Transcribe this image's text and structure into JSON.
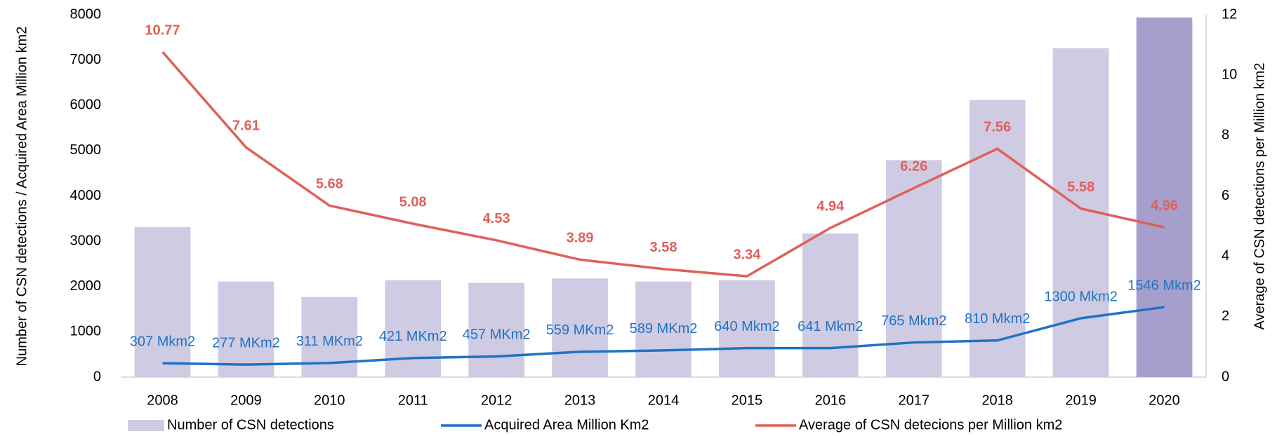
{
  "chart_data": {
    "type": "bar",
    "categories": [
      "2008",
      "2009",
      "2010",
      "2011",
      "2012",
      "2013",
      "2014",
      "2015",
      "2016",
      "2017",
      "2018",
      "2019",
      "2020"
    ],
    "ylabel": "Number of CSN detections / Acquired Area Million km2",
    "y2label": "Average of CSN detections per Million km2",
    "ylim": [
      0,
      8000
    ],
    "yticks": [
      0,
      1000,
      2000,
      3000,
      4000,
      5000,
      6000,
      7000,
      8000
    ],
    "y2lim": [
      0,
      12
    ],
    "y2ticks": [
      0,
      2,
      4,
      6,
      8,
      10,
      12
    ],
    "legend": "bottom",
    "series": [
      {
        "name": "Number of CSN detections",
        "type": "bar",
        "color": "#cfcbe3",
        "colors": [
          "#cfcbe3",
          "#cfcbe3",
          "#cfcbe3",
          "#cfcbe3",
          "#cfcbe3",
          "#cfcbe3",
          "#cfcbe3",
          "#cfcbe3",
          "#cfcbe3",
          "#cfcbe3",
          "#cfcbe3",
          "#cfcbe3",
          "#a69fcb"
        ],
        "values": [
          3310,
          2110,
          1770,
          2140,
          2080,
          2180,
          2110,
          2140,
          3170,
          4790,
          6120,
          7260,
          7940
        ]
      },
      {
        "name": "Acquired Area Million Km2",
        "type": "line",
        "color": "#1f73c4",
        "values": [
          307,
          277,
          311,
          421,
          457,
          559,
          589,
          640,
          641,
          765,
          810,
          1300,
          1546
        ],
        "value_labels": [
          "307 Mkm2",
          "277 MKm2",
          "311 MKm2",
          "421 MKm2",
          "457 MKm2",
          "559 MKm2",
          "589 MKm2",
          "640 Mkm2",
          "641 Mkm2",
          "765 Mkm2",
          "810 Mkm2",
          "1300 Mkm2",
          "1546 Mkm2"
        ]
      },
      {
        "name": "Average of CSN detecions per Million km2",
        "type": "line",
        "axis": "y2",
        "color": "#e0605a",
        "values": [
          10.77,
          7.61,
          5.68,
          5.08,
          4.53,
          3.89,
          3.58,
          3.34,
          4.94,
          6.26,
          7.56,
          5.58,
          4.96
        ]
      }
    ]
  }
}
